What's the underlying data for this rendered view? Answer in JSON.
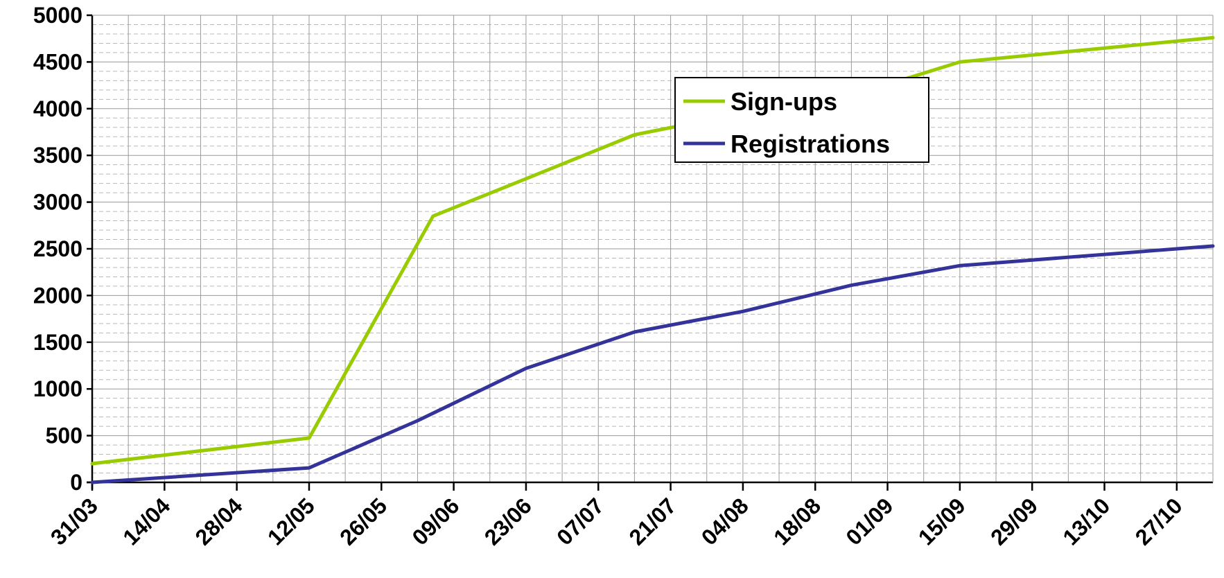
{
  "chart_data": {
    "type": "line",
    "title": "",
    "xlabel": "",
    "ylabel": "",
    "ylim": [
      0,
      5000
    ],
    "y_ticks": [
      0,
      500,
      1000,
      1500,
      2000,
      2500,
      3000,
      3500,
      4000,
      4500,
      5000
    ],
    "y_minor_step": 100,
    "x_range": [
      "31/03",
      "03/11"
    ],
    "x_tick_labels": [
      "31/03",
      "14/04",
      "28/04",
      "12/05",
      "26/05",
      "09/06",
      "23/06",
      "07/07",
      "21/07",
      "04/08",
      "18/08",
      "01/09",
      "15/09",
      "29/09",
      "13/10",
      "27/10"
    ],
    "grid": true,
    "legend_position": "top-center",
    "series": [
      {
        "name": "Sign-ups",
        "color": "#99cc00",
        "points": [
          {
            "x": "31/03",
            "y": 200
          },
          {
            "x": "12/05",
            "y": 475
          },
          {
            "x": "05/06",
            "y": 2850
          },
          {
            "x": "23/06",
            "y": 3250
          },
          {
            "x": "14/07",
            "y": 3720
          },
          {
            "x": "01/09",
            "y": 4260
          },
          {
            "x": "15/09",
            "y": 4500
          },
          {
            "x": "03/11",
            "y": 4760
          }
        ]
      },
      {
        "name": "Registrations",
        "color": "#333399",
        "points": [
          {
            "x": "31/03",
            "y": 0
          },
          {
            "x": "12/05",
            "y": 155
          },
          {
            "x": "02/06",
            "y": 660
          },
          {
            "x": "23/06",
            "y": 1220
          },
          {
            "x": "14/07",
            "y": 1610
          },
          {
            "x": "04/08",
            "y": 1830
          },
          {
            "x": "25/08",
            "y": 2110
          },
          {
            "x": "15/09",
            "y": 2320
          },
          {
            "x": "03/11",
            "y": 2530
          }
        ]
      }
    ]
  }
}
